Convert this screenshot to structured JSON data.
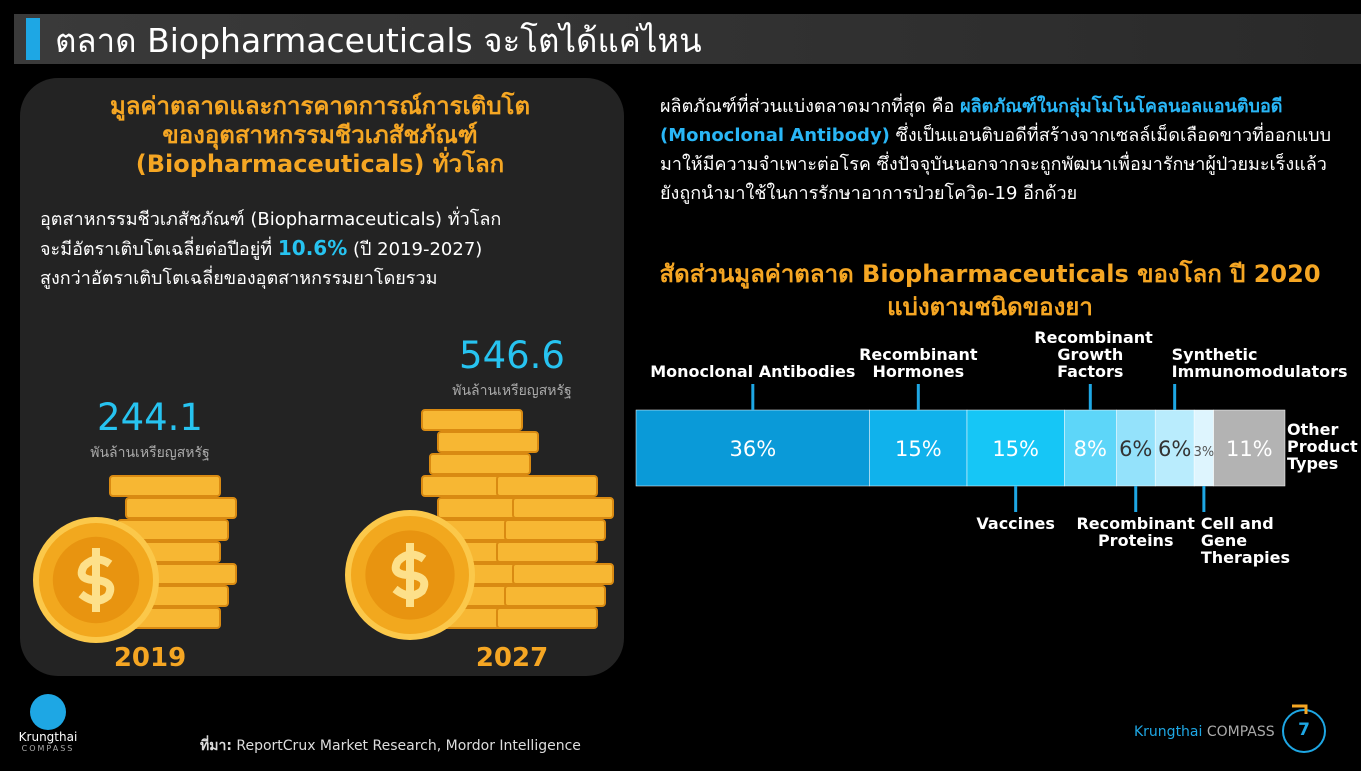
{
  "header": {
    "title": "ตลาด Biopharmaceuticals จะโตได้แค่ไหน"
  },
  "left_panel": {
    "title_lines": [
      "มูลค่าตลาดและการคาดการณ์การเติบโต",
      "ของอุตสาหกรรมชีวเภสัชภัณฑ์",
      "(Biopharmaceuticals) ทั่วโลก"
    ],
    "body": {
      "line1": "อุตสาหกรรมชีวเภสัชภัณฑ์ (Biopharmaceuticals) ทั่วโลก",
      "line2_prefix": "จะมีอัตราเติบโตเฉลี่ยต่อปีอยู่ที่",
      "growth_rate": "10.6%",
      "line2_suffix": "(ปี 2019-2027)",
      "line3": "สูงกว่าอัตราเติบโตเฉลี่ยของอุตสาหกรรมยาโดยรวม"
    },
    "market_size": [
      {
        "year": "2019",
        "value": 244.1,
        "unit": "พันล้านเหรียญสหรัฐ"
      },
      {
        "year": "2027",
        "value": 546.6,
        "unit": "พันล้านเหรียญสหรัฐ"
      }
    ]
  },
  "right_panel": {
    "intro": "ผลิตภัณฑ์ที่ส่วนแบ่งตลาดมากที่สุด คือ",
    "highlight": "ผลิตภัณฑ์ในกลุ่มโมโนโคลนอลแอนติบอดี (Monoclonal Antibody)",
    "rest": "ซึ่งเป็นแอนติบอดีที่สร้างจากเซลล์เม็ดเลือดขาวที่ออกแบบมาให้มีความจำเพาะต่อโรค ซึ่งปัจจุบันนอกจากจะถูกพัฒนาเพื่อมารักษาผู้ป่วยมะเร็งแล้ว ยังถูกนำมาใช้ในการรักษาอาการป่วยโควิด-19 อีกด้วย"
  },
  "chart_data": {
    "type": "bar",
    "stacked": true,
    "orientation": "horizontal",
    "title": "สัดส่วนมูลค่าตลาด Biopharmaceuticals ของโลก ปี 2020",
    "subtitle": "แบ่งตามชนิดของยา",
    "series": [
      {
        "name": "Monoclonal Antibodies",
        "color": "#0a9ad8",
        "values": [
          36
        ],
        "value_labels": [
          "36%"
        ]
      },
      {
        "name": "Recombinant Hormones",
        "color": "#10b2ec",
        "values": [
          15
        ],
        "value_labels": [
          "15%"
        ]
      },
      {
        "name": "Vaccines",
        "color": "#16c6f6",
        "values": [
          15
        ],
        "value_labels": [
          "15%"
        ]
      },
      {
        "name": "Recombinant Growth Factors",
        "color": "#5dd6f9",
        "values": [
          8
        ],
        "value_labels": [
          "8%"
        ]
      },
      {
        "name": "Recombinant Proteins",
        "color": "#94e2fb",
        "values": [
          6
        ],
        "value_labels": [
          "6%"
        ]
      },
      {
        "name": "Synthetic Immunomodulators",
        "color": "#b9ecfd",
        "values": [
          6
        ],
        "value_labels": [
          "6%"
        ]
      },
      {
        "name": "Cell and Gene Therapies",
        "color": "#def5fe",
        "values": [
          3
        ],
        "value_labels": [
          "3%"
        ]
      },
      {
        "name": "Other Product Types",
        "color": "#b3b3b3",
        "values": [
          11
        ],
        "value_labels": [
          "11%"
        ]
      }
    ]
  },
  "footer": {
    "source_label": "ที่มา:",
    "source": "ReportCrux Market Research, Mordor Intelligence",
    "logo_name": "Krungthai",
    "logo_sub": "COMPASS",
    "brand": "Krungthai",
    "brand_sub": "COMPASS",
    "page_number": 7
  }
}
